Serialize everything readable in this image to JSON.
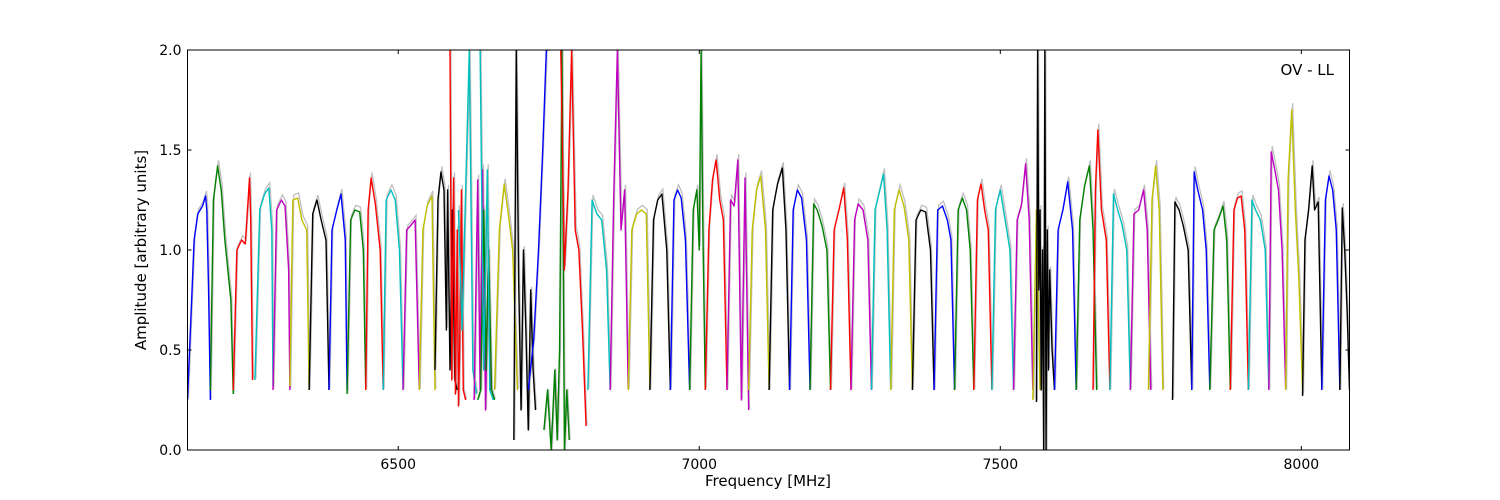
{
  "chart_data": {
    "type": "line",
    "title": "",
    "annotation": "OV - LL",
    "xlabel": "Frequency [MHz]",
    "ylabel": "Amplitude [arbitrary units]",
    "xlim": [
      6150,
      8080
    ],
    "ylim": [
      0,
      2.0
    ],
    "x_ticks": [
      6500,
      7000,
      7500,
      8000
    ],
    "x_tick_labels": [
      "6500",
      "7000",
      "7500",
      "8000"
    ],
    "y_ticks": [
      0.0,
      0.5,
      1.0,
      1.5,
      2.0
    ],
    "y_tick_labels": [
      "0.0",
      "0.5",
      "1.0",
      "1.5",
      "2.0"
    ],
    "grid": false,
    "legend": "none",
    "colors": {
      "reference": "#bfbfbf",
      "cycle": [
        "#0000ff",
        "#008000",
        "#ff0000",
        "#00bfbf",
        "#bf00bf",
        "#bfbf00",
        "#000000"
      ]
    },
    "series": [
      {
        "color": "blue",
        "x": [
          6150,
          6161,
          6167,
          6175,
          6180,
          6182,
          6185,
          6188
        ],
        "y": [
          0.25,
          1.05,
          1.18,
          1.22,
          1.27,
          1.2,
          0.8,
          0.25
        ]
      },
      {
        "color": "green",
        "x": [
          6188,
          6193,
          6200,
          6206,
          6212,
          6222,
          6226
        ],
        "y": [
          0.3,
          1.25,
          1.42,
          1.3,
          1.05,
          0.75,
          0.28
        ]
      },
      {
        "color": "red",
        "x": [
          6226,
          6232,
          6240,
          6246,
          6253,
          6255,
          6258
        ],
        "y": [
          0.3,
          1.0,
          1.05,
          1.03,
          1.36,
          1.15,
          0.35
        ]
      },
      {
        "color": "cyan",
        "x": [
          6262,
          6270,
          6278,
          6285,
          6290,
          6292
        ],
        "y": [
          0.35,
          1.2,
          1.28,
          1.31,
          1.1,
          0.32
        ]
      },
      {
        "color": "magenta",
        "x": [
          6292,
          6298,
          6306,
          6312,
          6318,
          6320
        ],
        "y": [
          0.3,
          1.2,
          1.25,
          1.22,
          0.9,
          0.3
        ]
      },
      {
        "color": "yellow",
        "x": [
          6320,
          6325,
          6333,
          6340,
          6348,
          6352
        ],
        "y": [
          0.32,
          1.25,
          1.26,
          1.15,
          1.1,
          0.3
        ]
      },
      {
        "color": "black",
        "x": [
          6352,
          6358,
          6365,
          6372,
          6380,
          6385
        ],
        "y": [
          0.3,
          1.18,
          1.25,
          1.15,
          1.05,
          0.3
        ]
      },
      {
        "color": "blue",
        "x": [
          6385,
          6390,
          6398,
          6405,
          6412,
          6415
        ],
        "y": [
          0.3,
          1.1,
          1.2,
          1.28,
          1.05,
          0.3
        ]
      },
      {
        "color": "green",
        "x": [
          6415,
          6421,
          6428,
          6436,
          6442,
          6446
        ],
        "y": [
          0.28,
          1.15,
          1.2,
          1.19,
          1.0,
          0.3
        ]
      },
      {
        "color": "red",
        "x": [
          6446,
          6450,
          6455,
          6462,
          6470,
          6475
        ],
        "y": [
          0.3,
          1.2,
          1.36,
          1.23,
          1.0,
          0.3
        ]
      },
      {
        "color": "cyan",
        "x": [
          6475,
          6480,
          6488,
          6495,
          6502,
          6508
        ],
        "y": [
          0.3,
          1.25,
          1.3,
          1.25,
          1.0,
          0.3
        ]
      },
      {
        "color": "magenta",
        "x": [
          6508,
          6514,
          6520,
          6528,
          6535
        ],
        "y": [
          0.3,
          1.1,
          1.12,
          1.15,
          0.3
        ]
      },
      {
        "color": "yellow",
        "x": [
          6535,
          6541,
          6548,
          6556,
          6561
        ],
        "y": [
          0.3,
          1.1,
          1.22,
          1.27,
          0.3
        ]
      },
      {
        "color": "black",
        "x": [
          6561,
          6566,
          6571,
          6576,
          6580,
          6582,
          6586,
          6590,
          6594,
          6598
        ],
        "y": [
          0.4,
          1.25,
          1.39,
          1.3,
          0.6,
          1.3,
          0.4,
          1.2,
          0.35,
          0.3
        ]
      },
      {
        "color": "red",
        "x": [
          6586,
          6589,
          6592,
          6595,
          6598,
          6600,
          6602,
          6605,
          6608,
          6612
        ],
        "y": [
          2.0,
          0.35,
          1.36,
          0.28,
          1.1,
          0.22,
          0.5,
          1.3,
          0.3,
          0.25
        ]
      },
      {
        "color": "cyan",
        "x": [
          6600,
          6606,
          6612,
          6618,
          6624,
          6630
        ],
        "y": [
          1.2,
          0.6,
          1.3,
          2.0,
          0.4,
          0.28
        ]
      },
      {
        "color": "magenta",
        "x": [
          6626,
          6632,
          6636,
          6640,
          6645,
          6650,
          6654
        ],
        "y": [
          0.25,
          1.35,
          0.3,
          1.4,
          0.2,
          1.0,
          0.3
        ]
      },
      {
        "color": "green",
        "x": [
          6632,
          6637,
          6642,
          6646,
          6650,
          6655,
          6660
        ],
        "y": [
          0.25,
          0.3,
          1.2,
          0.4,
          1.0,
          0.3,
          0.25
        ]
      },
      {
        "color": "cyan",
        "x": [
          6636,
          6642,
          6648,
          6652,
          6658
        ],
        "y": [
          2.0,
          0.4,
          1.4,
          0.3,
          0.25
        ]
      },
      {
        "color": "yellow",
        "x": [
          6660,
          6668,
          6676,
          6682,
          6690,
          6698
        ],
        "y": [
          0.3,
          1.1,
          1.33,
          1.2,
          1.0,
          0.3
        ]
      },
      {
        "color": "black",
        "x": [
          6692,
          6696,
          6700,
          6704,
          6708,
          6712,
          6716,
          6720,
          6724,
          6728
        ],
        "y": [
          0.05,
          2.0,
          0.85,
          0.2,
          1.0,
          0.6,
          0.1,
          0.8,
          0.4,
          0.2
        ]
      },
      {
        "color": "blue",
        "x": [
          6716,
          6725,
          6733,
          6740,
          6746,
          6750
        ],
        "y": [
          0.3,
          0.55,
          1.0,
          1.5,
          2.0,
          2.0
        ]
      },
      {
        "color": "green",
        "x": [
          6742,
          6748,
          6754,
          6760,
          6764,
          6768,
          6772,
          6776,
          6780,
          6784
        ],
        "y": [
          0.1,
          0.3,
          0.0,
          0.4,
          0.05,
          0.5,
          2.0,
          0.0,
          0.3,
          0.05
        ]
      },
      {
        "color": "red",
        "x": [
          6770,
          6776,
          6782,
          6788,
          6794,
          6800,
          6806,
          6812
        ],
        "y": [
          2.0,
          0.9,
          1.3,
          2.0,
          1.1,
          1.0,
          0.6,
          0.12
        ]
      },
      {
        "color": "cyan",
        "x": [
          6815,
          6822,
          6830,
          6838,
          6846,
          6852
        ],
        "y": [
          0.3,
          1.25,
          1.18,
          1.15,
          0.9,
          0.3
        ]
      },
      {
        "color": "magenta",
        "x": [
          6852,
          6858,
          6864,
          6870,
          6876,
          6882
        ],
        "y": [
          0.3,
          1.28,
          2.0,
          1.1,
          1.3,
          0.3
        ]
      },
      {
        "color": "yellow",
        "x": [
          6882,
          6888,
          6896,
          6904,
          6912,
          6918
        ],
        "y": [
          0.3,
          1.1,
          1.18,
          1.2,
          1.18,
          0.3
        ]
      },
      {
        "color": "black",
        "x": [
          6918,
          6924,
          6931,
          6938,
          6946,
          6952
        ],
        "y": [
          0.3,
          1.15,
          1.25,
          1.28,
          1.0,
          0.3
        ]
      },
      {
        "color": "blue",
        "x": [
          6952,
          6958,
          6964,
          6970,
          6977,
          6984
        ],
        "y": [
          0.3,
          1.25,
          1.3,
          1.26,
          1.05,
          0.3
        ]
      },
      {
        "color": "green",
        "x": [
          6984,
          6990,
          6996,
          7000,
          7003,
          7006,
          7010
        ],
        "y": [
          0.3,
          1.2,
          1.3,
          1.0,
          2.0,
          1.1,
          0.3
        ]
      },
      {
        "color": "red",
        "x": [
          7010,
          7016,
          7022,
          7028,
          7034,
          7040,
          7046
        ],
        "y": [
          0.3,
          1.1,
          1.35,
          1.45,
          1.25,
          1.15,
          0.3
        ]
      },
      {
        "color": "magenta",
        "x": [
          7046,
          7052,
          7058,
          7064,
          7070,
          7076,
          7082
        ],
        "y": [
          0.3,
          1.25,
          1.22,
          1.45,
          0.25,
          1.36,
          0.2
        ]
      },
      {
        "color": "yellow",
        "x": [
          7082,
          7088,
          7095,
          7102,
          7110,
          7116
        ],
        "y": [
          0.3,
          1.1,
          1.3,
          1.37,
          1.1,
          0.3
        ]
      },
      {
        "color": "black",
        "x": [
          7116,
          7122,
          7130,
          7138,
          7144,
          7150
        ],
        "y": [
          0.3,
          1.2,
          1.33,
          1.41,
          1.1,
          0.3
        ]
      },
      {
        "color": "blue",
        "x": [
          7150,
          7156,
          7163,
          7170,
          7178,
          7184
        ],
        "y": [
          0.3,
          1.2,
          1.3,
          1.26,
          1.05,
          0.3
        ]
      },
      {
        "color": "green",
        "x": [
          7184,
          7190,
          7196,
          7204,
          7212,
          7218
        ],
        "y": [
          0.3,
          1.23,
          1.2,
          1.12,
          1.0,
          0.3
        ]
      },
      {
        "color": "red",
        "x": [
          7218,
          7224,
          7232,
          7240,
          7246,
          7252
        ],
        "y": [
          0.3,
          1.1,
          1.2,
          1.31,
          1.05,
          0.3
        ]
      },
      {
        "color": "magenta",
        "x": [
          7252,
          7258,
          7264,
          7272,
          7280,
          7286
        ],
        "y": [
          0.3,
          1.15,
          1.23,
          1.2,
          1.05,
          0.3
        ]
      },
      {
        "color": "cyan",
        "x": [
          7286,
          7292,
          7300,
          7306,
          7312,
          7318
        ],
        "y": [
          0.3,
          1.2,
          1.3,
          1.38,
          1.1,
          0.3
        ]
      },
      {
        "color": "yellow",
        "x": [
          7318,
          7324,
          7332,
          7340,
          7348,
          7354
        ],
        "y": [
          0.3,
          1.2,
          1.3,
          1.22,
          1.05,
          0.3
        ]
      },
      {
        "color": "black",
        "x": [
          7354,
          7360,
          7368,
          7376,
          7384,
          7390
        ],
        "y": [
          0.3,
          1.15,
          1.2,
          1.19,
          1.0,
          0.3
        ]
      },
      {
        "color": "blue",
        "x": [
          7390,
          7396,
          7404,
          7412,
          7418,
          7424
        ],
        "y": [
          0.3,
          1.2,
          1.22,
          1.15,
          1.05,
          0.3
        ]
      },
      {
        "color": "green",
        "x": [
          7424,
          7430,
          7437,
          7444,
          7450,
          7456
        ],
        "y": [
          0.3,
          1.2,
          1.26,
          1.2,
          1.0,
          0.3
        ]
      },
      {
        "color": "red",
        "x": [
          7456,
          7462,
          7468,
          7474,
          7480,
          7486
        ],
        "y": [
          0.3,
          1.25,
          1.33,
          1.2,
          1.1,
          0.3
        ]
      },
      {
        "color": "cyan",
        "x": [
          7486,
          7492,
          7500,
          7508,
          7516,
          7522
        ],
        "y": [
          0.3,
          1.2,
          1.3,
          1.15,
          1.0,
          0.3
        ]
      },
      {
        "color": "magenta",
        "x": [
          7522,
          7528,
          7535,
          7542,
          7548,
          7554
        ],
        "y": [
          0.3,
          1.15,
          1.22,
          1.43,
          1.15,
          0.3
        ]
      },
      {
        "color": "yellow",
        "x": [
          7554,
          7560,
          7566
        ],
        "y": [
          0.25,
          1.2,
          0.3
        ]
      },
      {
        "color": "black",
        "x": [
          7560,
          7562,
          7564,
          7566,
          7568,
          7570,
          7572,
          7574,
          7576,
          7578,
          7580,
          7582,
          7586,
          7590
        ],
        "y": [
          0.24,
          2.0,
          0.8,
          1.2,
          0.3,
          1.0,
          0.0,
          2.0,
          0.0,
          1.1,
          0.4,
          0.9,
          0.5,
          0.3
        ]
      },
      {
        "color": "blue",
        "x": [
          7590,
          7596,
          7604,
          7612,
          7620,
          7626
        ],
        "y": [
          0.3,
          1.1,
          1.2,
          1.34,
          1.1,
          0.3
        ]
      },
      {
        "color": "green",
        "x": [
          7626,
          7632,
          7640,
          7648,
          7654,
          7660
        ],
        "y": [
          0.3,
          1.15,
          1.32,
          1.42,
          1.1,
          0.3
        ]
      },
      {
        "color": "red",
        "x": [
          7654,
          7658,
          7662,
          7668,
          7676,
          7682
        ],
        "y": [
          0.3,
          1.3,
          1.6,
          1.2,
          1.05,
          0.3
        ]
      },
      {
        "color": "cyan",
        "x": [
          7682,
          7688,
          7695,
          7702,
          7710,
          7716
        ],
        "y": [
          0.3,
          1.28,
          1.2,
          1.13,
          1.0,
          0.3
        ]
      },
      {
        "color": "magenta",
        "x": [
          7716,
          7722,
          7730,
          7738,
          7744,
          7750
        ],
        "y": [
          0.3,
          1.18,
          1.2,
          1.3,
          1.1,
          0.3
        ]
      },
      {
        "color": "yellow",
        "x": [
          7746,
          7752,
          7758,
          7764,
          7770
        ],
        "y": [
          0.3,
          1.25,
          1.42,
          1.2,
          0.3
        ]
      },
      {
        "color": "black",
        "x": [
          7786,
          7790,
          7797,
          7804,
          7812,
          7818
        ],
        "y": [
          0.25,
          1.24,
          1.2,
          1.12,
          1.0,
          0.3
        ]
      },
      {
        "color": "blue",
        "x": [
          7818,
          7822,
          7828,
          7836,
          7842,
          7848
        ],
        "y": [
          0.3,
          1.39,
          1.3,
          1.2,
          1.0,
          0.3
        ]
      },
      {
        "color": "green",
        "x": [
          7848,
          7855,
          7862,
          7870,
          7876,
          7882
        ],
        "y": [
          0.3,
          1.1,
          1.15,
          1.22,
          1.05,
          0.3
        ]
      },
      {
        "color": "red",
        "x": [
          7882,
          7888,
          7894,
          7900,
          7906,
          7912
        ],
        "y": [
          0.3,
          1.2,
          1.26,
          1.27,
          1.1,
          0.3
        ]
      },
      {
        "color": "cyan",
        "x": [
          7912,
          7918,
          7924,
          7932,
          7940,
          7946
        ],
        "y": [
          0.3,
          1.25,
          1.2,
          1.15,
          1.0,
          0.3
        ]
      },
      {
        "color": "magenta",
        "x": [
          7946,
          7950,
          7956,
          7962,
          7968,
          7974
        ],
        "y": [
          0.3,
          1.49,
          1.4,
          1.3,
          1.0,
          0.3
        ]
      },
      {
        "color": "yellow",
        "x": [
          7974,
          7978,
          7984,
          7990,
          7996,
          8002
        ],
        "y": [
          0.3,
          1.35,
          1.7,
          1.2,
          0.85,
          0.3
        ]
      },
      {
        "color": "black",
        "x": [
          8002,
          8006,
          8012,
          8018,
          8022,
          8028,
          8034
        ],
        "y": [
          0.27,
          1.05,
          1.2,
          1.42,
          1.2,
          1.24,
          0.3
        ]
      },
      {
        "color": "blue",
        "x": [
          8034,
          8040,
          8046,
          8052,
          8058,
          8064
        ],
        "y": [
          0.3,
          1.25,
          1.37,
          1.3,
          1.1,
          0.3
        ]
      },
      {
        "color": "black",
        "x": [
          8064,
          8068,
          8072,
          8076,
          8080
        ],
        "y": [
          0.3,
          1.21,
          1.0,
          0.7,
          0.3
        ]
      }
    ]
  }
}
